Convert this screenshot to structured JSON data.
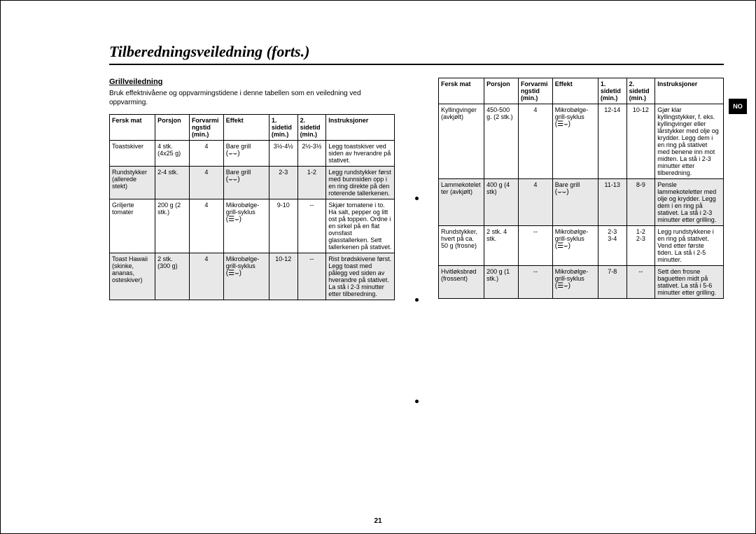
{
  "title": "Tilberedningsveiledning (forts.)",
  "section_heading": "Grillveiledning",
  "intro": "Bruk effektnivåene og oppvarmingstidene i denne tabellen som en veiledning ved oppvarming.",
  "page_number": "21",
  "side_tab": "NO",
  "headers": {
    "c1": "Fersk mat",
    "c2": "Porsjon",
    "c3": "Forvarmingstid (min.)",
    "c4": "Effekt",
    "c5": "1. sidetid (min.)",
    "c6": "2. sidetid (min.)",
    "c7": "Instruksjoner"
  },
  "effect_labels": {
    "grill": "Bare grill",
    "combo": "Mikrobølge-grill-syklus"
  },
  "left_rows": [
    {
      "shaded": false,
      "c1": "Toastskiver",
      "c2": "4 stk. (4x25 g)",
      "c3": "4",
      "c4": "grill",
      "c5": "3½-4½",
      "c6": "2½-3½",
      "c7": "Legg toastskiver ved siden av hverandre på stativet."
    },
    {
      "shaded": true,
      "c1": "Rundstykker (allerede stekt)",
      "c2": "2-4 stk.",
      "c3": "4",
      "c4": "grill",
      "c5": "2-3",
      "c6": "1-2",
      "c7": "Legg rundstykker først med bunnsiden opp i en ring direkte på den roterende tallerkenen."
    },
    {
      "shaded": false,
      "c1": "Griljerte tomater",
      "c2": "200 g (2 stk.)",
      "c3": "4",
      "c4": "combo",
      "c5": "9-10",
      "c6": "--",
      "c7": "Skjær tomatene i to. Ha salt, pepper og litt ost på toppen. Ordne i en sirkel på en flat ovnsfast glasstallerken. Sett tallerkenen på stativet."
    },
    {
      "shaded": true,
      "c1": "Toast Hawaii (skinke, ananas, osteskiver)",
      "c2": "2 stk. (300 g)",
      "c3": "4",
      "c4": "combo",
      "c5": "10-12",
      "c6": "--",
      "c7": "Rist brødskivene først. Legg toast med pålegg ved siden av hverandre på stativet. La stå i 2-3 minutter etter tilberedning."
    }
  ],
  "right_rows": [
    {
      "shaded": false,
      "c1": "Kyllingvinger (avkjølt)",
      "c2": "450-500 g. (2 stk.)",
      "c3": "4",
      "c4": "combo",
      "c5": "12-14",
      "c6": "10-12",
      "c7": "Gjør klar kyllingstykker, f. eks. kyllingvinger eller lårstykker med olje og krydder. Legg dem i en ring på stativet med benene inn mot midten. La stå i 2-3 minutter etter tilberedning."
    },
    {
      "shaded": true,
      "c1": "Lammekoteletter (avkjølt)",
      "c2": "400 g (4 stk)",
      "c3": "4",
      "c4": "grill",
      "c5": "11-13",
      "c6": "8-9",
      "c7": "Pensle lammekoteletter med olje og krydder. Legg dem i en ring på stativet. La stå i 2-3 minutter etter grilling."
    },
    {
      "shaded": false,
      "c1": "Rundstykker, hvert på ca. 50 g (frosne)",
      "c2": "2 stk. 4 stk.",
      "c3": "--",
      "c4": "combo",
      "c5": "2-3 3-4",
      "c6": "1-2 2-3",
      "c7": "Legg rundstykkene i en ring på stativet. Vend etter første tiden. La stå i 2-5 minutter."
    },
    {
      "shaded": true,
      "c1": "Hvitløksbrød (frossent)",
      "c2": "200 g (1 stk.)",
      "c3": "--",
      "c4": "combo",
      "c5": "7-8",
      "c6": "--",
      "c7": "Sett den frosne baguetten midt på stativet. La stå i 5-6 minutter etter grilling."
    }
  ]
}
